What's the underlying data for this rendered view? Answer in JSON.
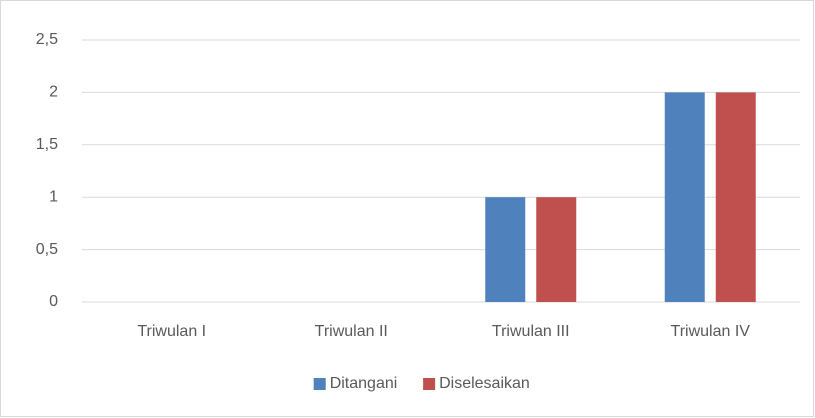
{
  "chart_data": {
    "type": "bar",
    "categories": [
      "Triwulan I",
      "Triwulan II",
      "Triwulan III",
      "Triwulan IV"
    ],
    "series": [
      {
        "name": "Ditangani",
        "color": "#4f81bd",
        "values": [
          0,
          0,
          1,
          2
        ]
      },
      {
        "name": "Diselesaikan",
        "color": "#c0504d",
        "values": [
          0,
          0,
          1,
          2
        ]
      }
    ],
    "ylim": [
      0,
      2.5
    ],
    "yticks": [
      0,
      {
        "value": 0.5,
        "label": "0,5"
      },
      1,
      {
        "value": 1.5,
        "label": "1,5"
      },
      2,
      {
        "value": 2.5,
        "label": "2,5"
      }
    ],
    "grid": true,
    "legend": "bottom"
  }
}
